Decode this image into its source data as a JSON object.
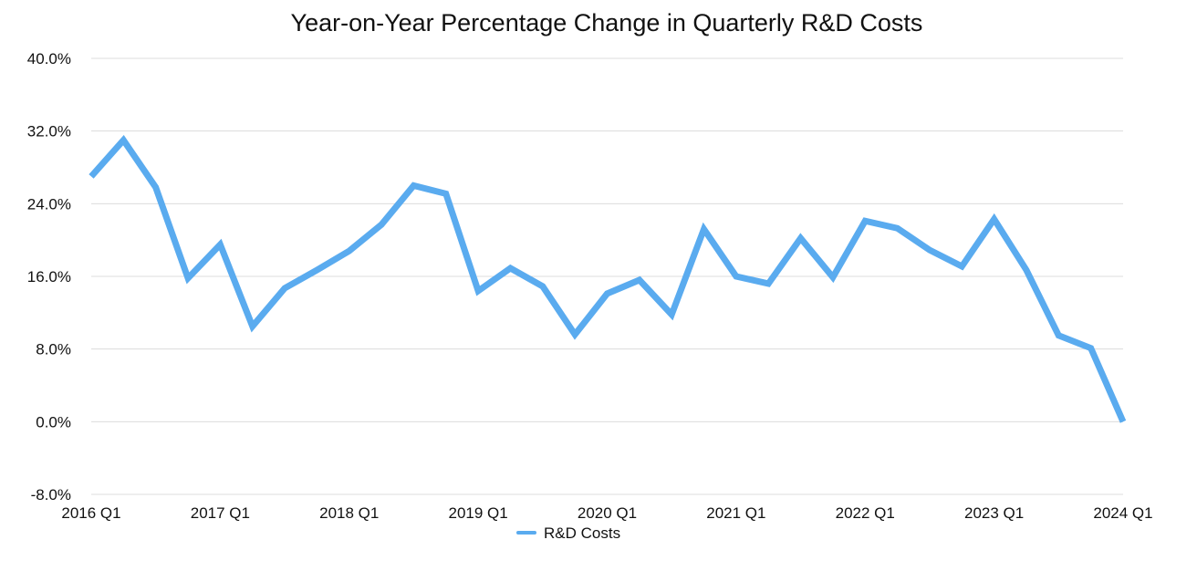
{
  "chart_data": {
    "type": "line",
    "title": "Year-on-Year Percentage Change in Quarterly R&D Costs",
    "xlabel": "",
    "ylabel": "",
    "ylim": [
      -8,
      40
    ],
    "y_ticks": [
      40,
      32,
      24,
      16,
      8,
      0,
      -8
    ],
    "y_tick_labels": [
      "40.0%",
      "32.0%",
      "24.0%",
      "16.0%",
      "8.0%",
      "0.0%",
      "-8.0%"
    ],
    "x_tick_labels": [
      "2016 Q1",
      "2017 Q1",
      "2018 Q1",
      "2019 Q1",
      "2020 Q1",
      "2021 Q1",
      "2022 Q1",
      "2023 Q1",
      "2024 Q1"
    ],
    "x_tick_indices": [
      0,
      4,
      8,
      12,
      16,
      20,
      24,
      28,
      32
    ],
    "grid": true,
    "legend_position": "bottom-center",
    "series": [
      {
        "name": "R&D Costs",
        "color": "#5AABEF",
        "categories": [
          "2016 Q1",
          "2016 Q2",
          "2016 Q3",
          "2016 Q4",
          "2017 Q1",
          "2017 Q2",
          "2017 Q3",
          "2017 Q4",
          "2018 Q1",
          "2018 Q2",
          "2018 Q3",
          "2018 Q4",
          "2019 Q1",
          "2019 Q2",
          "2019 Q3",
          "2019 Q4",
          "2020 Q1",
          "2020 Q2",
          "2020 Q3",
          "2020 Q4",
          "2021 Q1",
          "2021 Q2",
          "2021 Q3",
          "2021 Q4",
          "2022 Q1",
          "2022 Q2",
          "2022 Q3",
          "2022 Q4",
          "2023 Q1",
          "2023 Q2",
          "2023 Q3",
          "2023 Q4",
          "2024 Q1"
        ],
        "values": [
          27.0,
          31.0,
          25.8,
          15.8,
          19.5,
          10.5,
          14.7,
          16.7,
          18.8,
          21.7,
          26.0,
          25.1,
          14.4,
          16.9,
          14.9,
          9.6,
          14.1,
          15.6,
          11.8,
          21.2,
          16.0,
          15.2,
          20.2,
          15.9,
          22.1,
          21.3,
          18.9,
          17.1,
          22.3,
          16.7,
          9.5,
          8.1,
          0.0
        ]
      }
    ]
  }
}
